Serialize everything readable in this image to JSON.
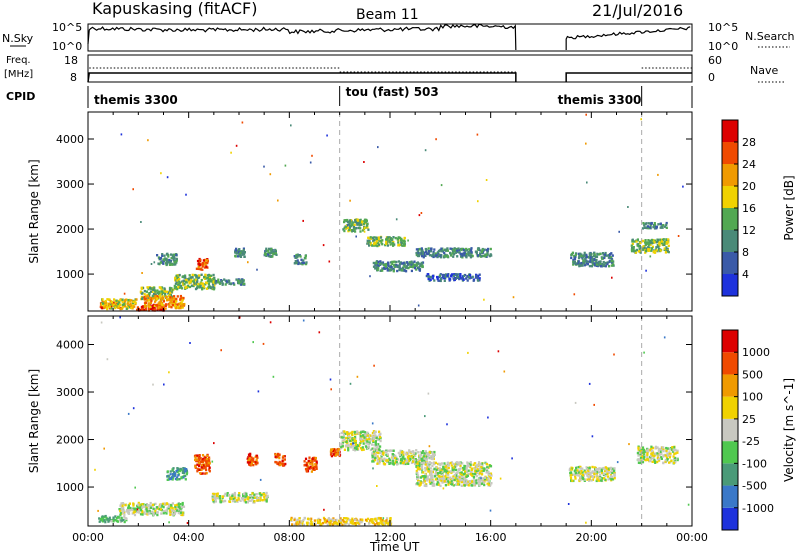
{
  "header": {
    "station": "Kapuskasing (fitACF)",
    "beam": "Beam 11",
    "date": "21/Jul/2016"
  },
  "aux_panels": {
    "nsky": {
      "label": "N.Sky",
      "ticks_left": [
        "10^5",
        "10^0"
      ],
      "ticks_right": [
        "10^5",
        "10^0"
      ],
      "right_label": "N.Search"
    },
    "freq": {
      "label_top": "Freq.",
      "label_bottom": "[MHz]",
      "ticks_left": [
        "18",
        "8"
      ],
      "ticks_right": [
        "60",
        "0"
      ],
      "right_label": "Nave"
    },
    "cpid": {
      "label": "CPID",
      "segments": [
        {
          "label": "themis 3300",
          "start": 0,
          "end": 10
        },
        {
          "label": "tou (fast) 503",
          "start": 10,
          "end": 22
        },
        {
          "label": "themis 3300",
          "start": 22,
          "end": 24
        }
      ]
    }
  },
  "chart_data": [
    {
      "type": "heatmap",
      "panel": "power",
      "xlabel": "",
      "ylabel": "Slant Range [km]",
      "xlim": [
        0,
        24
      ],
      "ylim": [
        180,
        4600
      ],
      "yticks": [
        1000,
        2000,
        3000,
        4000
      ],
      "colorbar": {
        "label": "Power [dB]",
        "ticks": [
          "4",
          "8",
          "12",
          "16",
          "20",
          "24",
          "28"
        ],
        "colors": [
          "#1e32dc",
          "#3a5aa8",
          "#4a8a78",
          "#52a852",
          "#f0d200",
          "#f09a00",
          "#f04a00",
          "#dc0000"
        ]
      },
      "data_gaps_hours": [
        [
          17.0,
          19.0
        ]
      ],
      "blobs": [
        {
          "t": 0.9,
          "r": 330,
          "dt": 0.9,
          "dr": 130,
          "level": 6
        },
        {
          "t": 1.2,
          "r": 360,
          "dt": 1.4,
          "dr": 220,
          "level": 4
        },
        {
          "t": 2.5,
          "r": 280,
          "dt": 1.2,
          "dr": 130,
          "level": 7
        },
        {
          "t": 2.7,
          "r": 600,
          "dt": 1.3,
          "dr": 280,
          "level": 3
        },
        {
          "t": 3.0,
          "r": 400,
          "dt": 1.6,
          "dr": 280,
          "level": 5
        },
        {
          "t": 4.5,
          "r": 1250,
          "dt": 0.45,
          "dr": 260,
          "level": 6
        },
        {
          "t": 4.2,
          "r": 850,
          "dt": 1.6,
          "dr": 320,
          "level": 3
        },
        {
          "t": 3.1,
          "r": 1350,
          "dt": 0.8,
          "dr": 250,
          "level": 2
        },
        {
          "t": 5.6,
          "r": 850,
          "dt": 1.2,
          "dr": 120,
          "level": 2
        },
        {
          "t": 6.0,
          "r": 1500,
          "dt": 0.4,
          "dr": 180,
          "level": 2
        },
        {
          "t": 7.2,
          "r": 1500,
          "dt": 0.5,
          "dr": 180,
          "level": 2
        },
        {
          "t": 8.4,
          "r": 1350,
          "dt": 0.5,
          "dr": 220,
          "level": 2
        },
        {
          "t": 10.6,
          "r": 2100,
          "dt": 1.0,
          "dr": 280,
          "level": 3
        },
        {
          "t": 11.8,
          "r": 1750,
          "dt": 1.5,
          "dr": 200,
          "level": 3
        },
        {
          "t": 14.5,
          "r": 1500,
          "dt": 3.0,
          "dr": 200,
          "level": 2
        },
        {
          "t": 12.3,
          "r": 1200,
          "dt": 2.0,
          "dr": 220,
          "level": 2
        },
        {
          "t": 14.5,
          "r": 950,
          "dt": 2.2,
          "dr": 150,
          "level": 1
        },
        {
          "t": 20.0,
          "r": 1350,
          "dt": 1.7,
          "dr": 300,
          "level": 2
        },
        {
          "t": 22.3,
          "r": 1650,
          "dt": 1.5,
          "dr": 300,
          "level": 3
        },
        {
          "t": 22.5,
          "r": 2100,
          "dt": 1.0,
          "dr": 120,
          "level": 2
        }
      ]
    },
    {
      "type": "heatmap",
      "panel": "velocity",
      "xlabel": "Time UT",
      "ylabel": "Slant Range [km]",
      "xlim": [
        0,
        24
      ],
      "ylim": [
        180,
        4600
      ],
      "xticks": [
        "00:00",
        "04:00",
        "08:00",
        "12:00",
        "16:00",
        "20:00",
        "00:00"
      ],
      "yticks": [
        1000,
        2000,
        3000,
        4000
      ],
      "colorbar": {
        "label": "Velocity [m s^-1]",
        "ticks": [
          "1000",
          "500",
          "100",
          "25",
          "-25",
          "-100",
          "-500",
          "-1000"
        ],
        "colors": [
          "#1e32dc",
          "#3a78c8",
          "#4a9a78",
          "#50c850",
          "#c8c8c0",
          "#f0d200",
          "#f09a00",
          "#f04a00",
          "#dc0000"
        ]
      },
      "data_gaps_hours": [
        [
          17.0,
          19.0
        ]
      ],
      "blobs": [
        {
          "t": 1.0,
          "r": 350,
          "dt": 1.2,
          "dr": 130,
          "level": 3
        },
        {
          "t": 2.5,
          "r": 560,
          "dt": 2.6,
          "dr": 260,
          "level": 4
        },
        {
          "t": 4.5,
          "r": 1500,
          "dt": 0.6,
          "dr": 400,
          "level": 7
        },
        {
          "t": 3.5,
          "r": 1300,
          "dt": 0.8,
          "dr": 250,
          "level": 2
        },
        {
          "t": 6.0,
          "r": 800,
          "dt": 2.2,
          "dr": 200,
          "level": 4
        },
        {
          "t": 6.5,
          "r": 1600,
          "dt": 0.4,
          "dr": 250,
          "level": 7
        },
        {
          "t": 7.6,
          "r": 1600,
          "dt": 0.4,
          "dr": 250,
          "level": 7
        },
        {
          "t": 8.8,
          "r": 1500,
          "dt": 0.5,
          "dr": 300,
          "level": 7
        },
        {
          "t": 9.8,
          "r": 1750,
          "dt": 0.4,
          "dr": 150,
          "level": 7
        },
        {
          "t": 10.8,
          "r": 2000,
          "dt": 1.6,
          "dr": 400,
          "level": 4
        },
        {
          "t": 12.5,
          "r": 1650,
          "dt": 2.5,
          "dr": 300,
          "level": 4
        },
        {
          "t": 14.5,
          "r": 1300,
          "dt": 3.0,
          "dr": 500,
          "level": 4
        },
        {
          "t": 10.0,
          "r": 300,
          "dt": 4.0,
          "dr": 150,
          "level": 5
        },
        {
          "t": 20.0,
          "r": 1300,
          "dt": 1.8,
          "dr": 300,
          "level": 4
        },
        {
          "t": 22.6,
          "r": 1700,
          "dt": 1.6,
          "dr": 350,
          "level": 4
        }
      ]
    }
  ]
}
